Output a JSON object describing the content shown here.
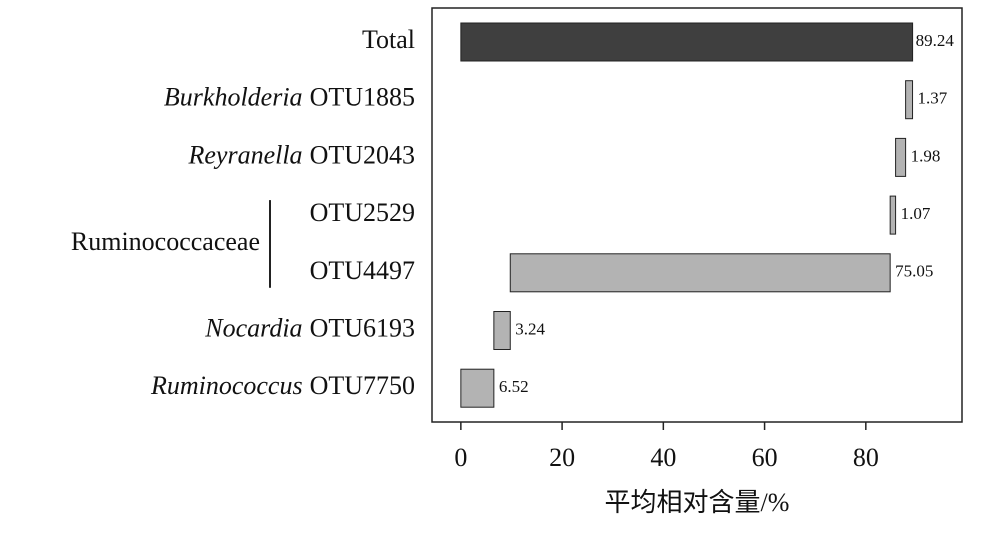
{
  "chart_data": {
    "type": "waterfall",
    "x_label": "平均相对含量/%",
    "total": {
      "label": "Total",
      "value": 89.24,
      "color": "#3f3f3f"
    },
    "categories": [
      "OTU1885",
      "OTU2043",
      "OTU2529",
      "OTU4497",
      "OTU6193",
      "OTU7750"
    ],
    "taxa": [
      "Burkholderia",
      "Reyranella",
      null,
      null,
      "Nocardia",
      "Ruminococcus"
    ],
    "groups": [
      {
        "name": "Ruminococcaceae",
        "categories": [
          "OTU2529",
          "OTU4497"
        ]
      }
    ],
    "values": [
      1.37,
      1.98,
      1.07,
      75.05,
      3.24,
      6.52
    ],
    "color": "#b3b3b3",
    "xlim": [
      -5.7,
      99
    ],
    "xticks": [
      0,
      20,
      40,
      60,
      80
    ]
  }
}
